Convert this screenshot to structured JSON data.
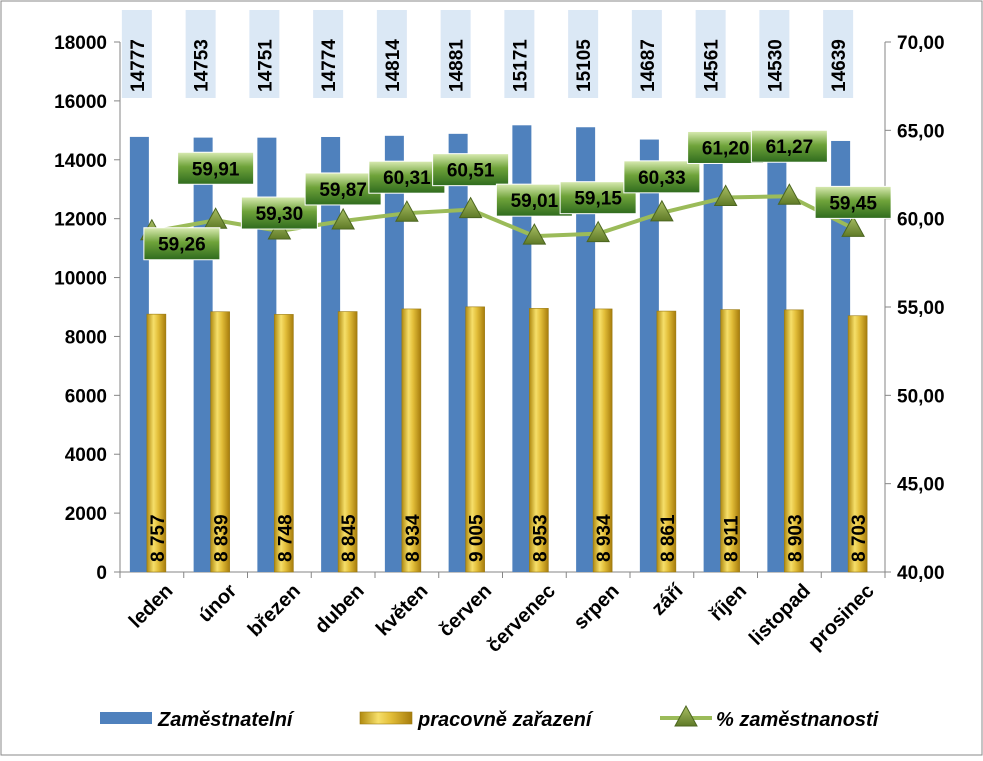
{
  "chart_data": {
    "type": "bar",
    "categories": [
      "leden",
      "únor",
      "březen",
      "duben",
      "květen",
      "červen",
      "červenec",
      "srpen",
      "září",
      "říjen",
      "listopad",
      "prosinec"
    ],
    "series": [
      {
        "name": "Zaměstnatelní",
        "kind": "bar",
        "axis": "left",
        "color": "#4f81bd",
        "values": [
          14777,
          14753,
          14751,
          14774,
          14814,
          14881,
          15171,
          15105,
          14687,
          14561,
          14530,
          14639
        ],
        "labels": [
          "14777",
          "14753",
          "14751",
          "14774",
          "14814",
          "14881",
          "15171",
          "15105",
          "14687",
          "14561",
          "14530",
          "14639"
        ]
      },
      {
        "name": "pracovně zařazení",
        "kind": "bar",
        "axis": "left",
        "color": "#e6c040",
        "values": [
          8757,
          8839,
          8748,
          8845,
          8934,
          9005,
          8953,
          8934,
          8861,
          8911,
          8903,
          8703
        ],
        "labels": [
          "8 757",
          "8 839",
          "8 748",
          "8 845",
          "8 934",
          "9 005",
          "8 953",
          "8 934",
          "8 861",
          "8 911",
          "8 903",
          "8 703"
        ]
      },
      {
        "name": "% zaměstnanosti",
        "kind": "line",
        "axis": "right",
        "color": "#9bbb59",
        "values": [
          59.26,
          59.91,
          59.3,
          59.87,
          60.31,
          60.51,
          59.01,
          59.15,
          60.33,
          61.2,
          61.27,
          59.45
        ],
        "labels": [
          "59,26",
          "59,91",
          "59,30",
          "59,87",
          "60,31",
          "60,51",
          "59,01",
          "59,15",
          "60,33",
          "61,20",
          "61,27",
          "59,45"
        ]
      }
    ],
    "y_left": {
      "ylim": [
        0,
        18000
      ],
      "ticks": [
        "0",
        "2000",
        "4000",
        "6000",
        "8000",
        "10000",
        "12000",
        "14000",
        "16000",
        "18000"
      ]
    },
    "y_right": {
      "ylim": [
        40,
        70
      ],
      "ticks": [
        "40,00",
        "45,00",
        "50,00",
        "55,00",
        "60,00",
        "65,00",
        "70,00"
      ]
    },
    "grid": false,
    "legend_position": "bottom"
  }
}
